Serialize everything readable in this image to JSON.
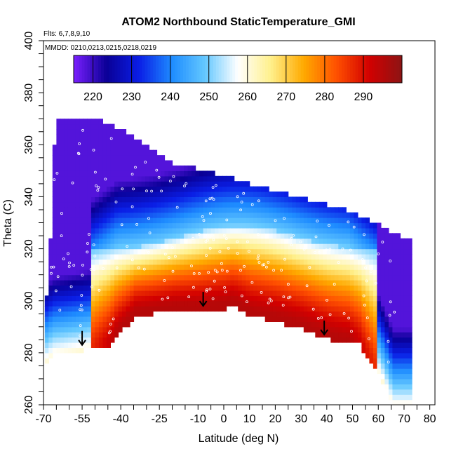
{
  "chart_data": {
    "type": "heatmap",
    "title": "ATOM2 Northbound StaticTemperature_GMI",
    "flights_note": "Flts: 6,7,8,9,10",
    "dates_note": "MMDD: 0210,0213,0215,0218,0219",
    "xlabel": "Latitude (deg N)",
    "ylabel": "Theta (C)",
    "xlim": [
      -70,
      82
    ],
    "ylim": [
      260,
      400
    ],
    "x_ticks": [
      "-70",
      "-55",
      "-40",
      "-25",
      "-10",
      "0",
      "10",
      "20",
      "30",
      "40",
      "50",
      "60",
      "70",
      "80"
    ],
    "y_ticks": [
      "260",
      "280",
      "300",
      "320",
      "340",
      "360",
      "380",
      "400"
    ],
    "colorbar": {
      "range": [
        215,
        300
      ],
      "ticks": [
        "220",
        "230",
        "240",
        "250",
        "260",
        "270",
        "280",
        "290"
      ],
      "colors": [
        "#7b1fff",
        "#0a0096",
        "#0a1ee6",
        "#1e8cff",
        "#64c8ff",
        "#ffffff",
        "#fff08c",
        "#ffaa00",
        "#ff5000",
        "#d20000",
        "#8c1414"
      ]
    },
    "lower_boundary": [
      [
        -70,
        277
      ],
      [
        -67,
        280
      ],
      [
        -55,
        282
      ],
      [
        -45,
        284
      ],
      [
        -35,
        295
      ],
      [
        -20,
        297
      ],
      [
        -10,
        297
      ],
      [
        0,
        298
      ],
      [
        3,
        299
      ],
      [
        10,
        295
      ],
      [
        20,
        293
      ],
      [
        30,
        290
      ],
      [
        40,
        286
      ],
      [
        48,
        284
      ],
      [
        52,
        284
      ],
      [
        60,
        272
      ],
      [
        65,
        260
      ]
    ],
    "upper_boundary": [
      [
        -69,
        301
      ],
      [
        -66,
        370
      ],
      [
        -50,
        369
      ],
      [
        -40,
        365
      ],
      [
        -20,
        352
      ],
      [
        0,
        347
      ],
      [
        20,
        341
      ],
      [
        40,
        336
      ],
      [
        50,
        333
      ],
      [
        60,
        328
      ],
      [
        70,
        323
      ],
      [
        72,
        322
      ]
    ],
    "warm_core": {
      "peak_temperature": 295,
      "lat_range": [
        -52,
        58
      ],
      "theta_base": 290
    },
    "arrows": [
      {
        "lat": -55,
        "theta": 283
      },
      {
        "lat": -8,
        "theta": 298
      },
      {
        "lat": 39,
        "theta": 287
      }
    ]
  }
}
